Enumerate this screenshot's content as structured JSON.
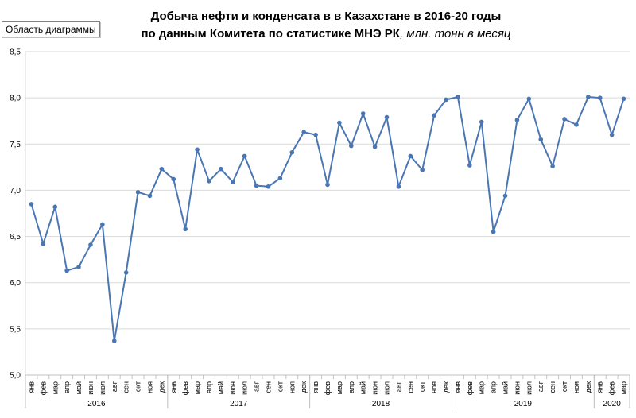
{
  "tooltip": "Область диаграммы",
  "chart_data": {
    "type": "line",
    "title_line1": "Добыча  нефти  и  конденсата  в  в  Казахстане  в  2016-20  годы",
    "title_line2_main": "по данным  Комитета по статистике  МНЭ РК",
    "title_line2_unit": ", млн. тонн в месяц",
    "ylim": [
      5.0,
      8.5
    ],
    "yticks": [
      "5,0",
      "5,5",
      "6,0",
      "6,5",
      "7,0",
      "7,5",
      "8,0",
      "8,5"
    ],
    "month_labels": [
      "янв",
      "фев",
      "мар",
      "апр",
      "май",
      "июн",
      "июл",
      "авг",
      "сен",
      "окт",
      "ноя",
      "дек"
    ],
    "years": [
      {
        "label": "2016",
        "months": 12
      },
      {
        "label": "2017",
        "months": 12
      },
      {
        "label": "2018",
        "months": 12
      },
      {
        "label": "2019",
        "months": 12
      },
      {
        "label": "2020",
        "months": 3
      }
    ],
    "series": [
      {
        "color": "#4a76b3",
        "values": [
          6.85,
          6.42,
          6.82,
          6.13,
          6.17,
          6.41,
          6.63,
          5.37,
          6.11,
          6.98,
          6.94,
          7.23,
          7.12,
          6.58,
          7.44,
          7.1,
          7.23,
          7.09,
          7.37,
          7.05,
          7.04,
          7.13,
          7.41,
          7.63,
          7.6,
          7.06,
          7.73,
          7.48,
          7.83,
          7.47,
          7.79,
          7.04,
          7.37,
          7.22,
          7.81,
          7.98,
          8.01,
          7.27,
          7.74,
          6.55,
          6.94,
          7.76,
          7.99,
          7.55,
          7.26,
          7.77,
          7.71,
          8.01,
          8.0,
          7.6,
          7.99
        ]
      }
    ]
  }
}
